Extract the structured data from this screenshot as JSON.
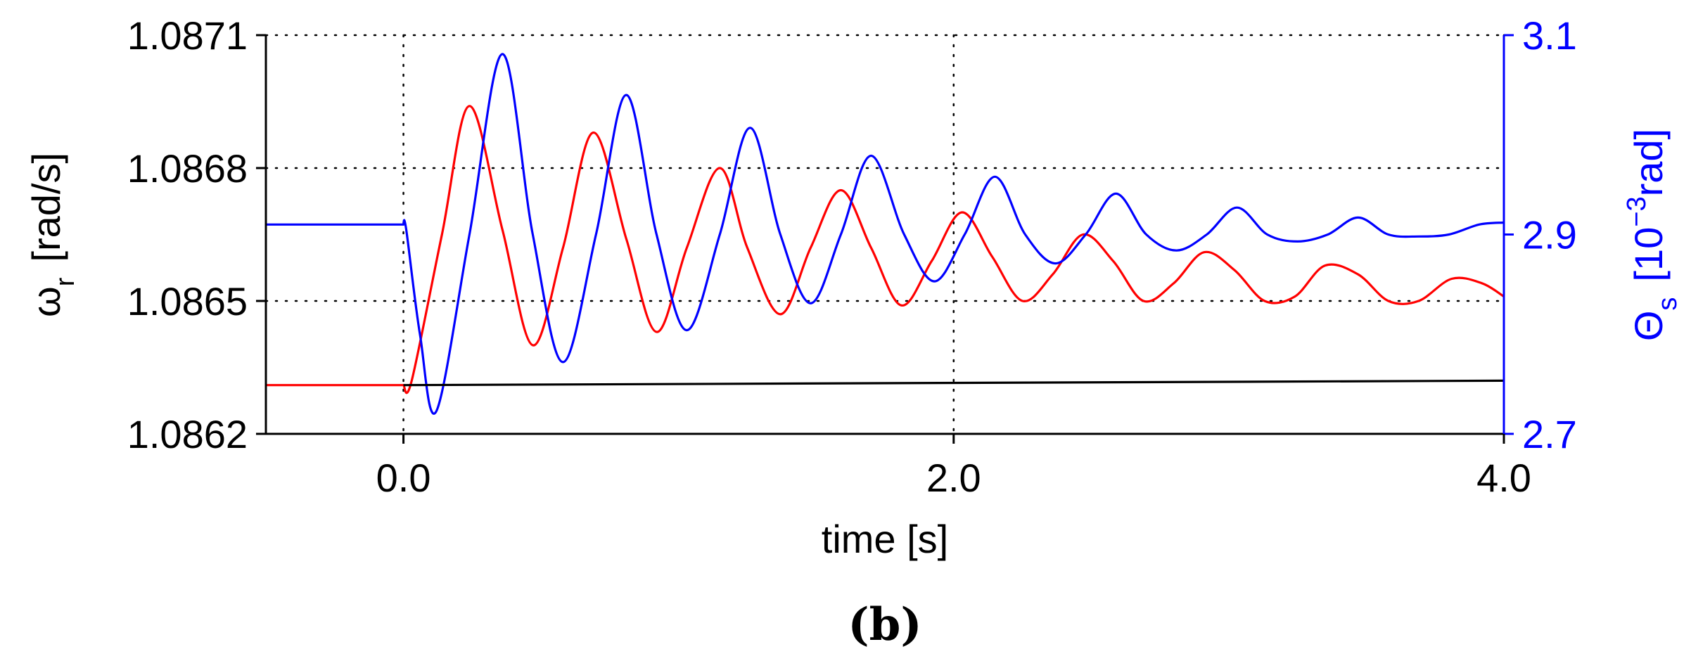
{
  "chart_data": {
    "type": "line",
    "panel_label": "(b)",
    "xlabel": "time [s]",
    "xlim": [
      -0.5,
      4.0
    ],
    "x_ticks": [
      0.0,
      2.0,
      4.0
    ],
    "x_tick_labels": [
      "0.0",
      "2.0",
      "4.0"
    ],
    "left_axis": {
      "label_main": "ω",
      "label_sub": "r",
      "label_unit": "[rad/s]",
      "ylim": [
        1.0862,
        1.0871
      ],
      "ticks": [
        1.0862,
        1.0865,
        1.0868,
        1.0871
      ],
      "tick_labels": [
        "1.0862",
        "1.0865",
        "1.0868",
        "1.0871"
      ],
      "color": "#000000"
    },
    "right_axis": {
      "label_main": "Θ",
      "label_sub": "s",
      "label_unit_pre": "[10",
      "label_unit_sup": "−3",
      "label_unit_post": "rad]",
      "ylim": [
        2.7,
        3.1
      ],
      "ticks": [
        2.7,
        2.9,
        3.1
      ],
      "tick_labels": [
        "2.7",
        "2.9",
        "3.1"
      ],
      "color": "#0000ff"
    },
    "grid": true,
    "series": [
      {
        "axis": "left",
        "color": "#ff0000",
        "x": [
          -0.5,
          0.0,
          0.03,
          0.14,
          0.24,
          0.36,
          0.47,
          0.58,
          0.69,
          0.81,
          0.92,
          1.03,
          1.15,
          1.25,
          1.37,
          1.48,
          1.59,
          1.7,
          1.81,
          1.92,
          2.03,
          2.14,
          2.25,
          2.36,
          2.47,
          2.58,
          2.69,
          2.8,
          2.91,
          3.02,
          3.13,
          3.24,
          3.35,
          3.47,
          3.58,
          3.69,
          3.81,
          3.92,
          4.0
        ],
        "values": [
          1.08631,
          1.08631,
          1.08632,
          1.08665,
          1.08694,
          1.08666,
          1.0864,
          1.08662,
          1.08688,
          1.08664,
          1.08643,
          1.08662,
          1.0868,
          1.08662,
          1.08647,
          1.08662,
          1.08675,
          1.08662,
          1.08649,
          1.08659,
          1.0867,
          1.0866,
          1.0865,
          1.08656,
          1.08665,
          1.08659,
          1.0865,
          1.08654,
          1.08661,
          1.08657,
          1.0865,
          1.08651,
          1.08658,
          1.08656,
          1.0865,
          1.0865,
          1.08655,
          1.08654,
          1.08651
        ]
      },
      {
        "axis": "right",
        "color": "#0000ff",
        "x": [
          -0.5,
          0.0,
          0.01,
          0.06,
          0.12,
          0.24,
          0.36,
          0.47,
          0.58,
          0.7,
          0.81,
          0.92,
          1.03,
          1.15,
          1.26,
          1.37,
          1.48,
          1.59,
          1.7,
          1.82,
          1.93,
          2.04,
          2.15,
          2.26,
          2.37,
          2.48,
          2.59,
          2.7,
          2.81,
          2.92,
          3.03,
          3.14,
          3.25,
          3.36,
          3.47,
          3.58,
          3.69,
          3.8,
          3.91,
          4.0
        ],
        "values": [
          2.91,
          2.91,
          2.905,
          2.8,
          2.723,
          2.9,
          3.081,
          2.9,
          2.772,
          2.9,
          3.04,
          2.9,
          2.804,
          2.9,
          3.007,
          2.9,
          2.831,
          2.9,
          2.979,
          2.9,
          2.853,
          2.9,
          2.958,
          2.9,
          2.871,
          2.9,
          2.941,
          2.9,
          2.884,
          2.9,
          2.927,
          2.9,
          2.893,
          2.9,
          2.917,
          2.9,
          2.898,
          2.9,
          2.91,
          2.912
        ]
      },
      {
        "axis": "left",
        "color": "#000000",
        "x": [
          0.0,
          4.0
        ],
        "values": [
          1.08631,
          1.08632
        ]
      }
    ]
  }
}
